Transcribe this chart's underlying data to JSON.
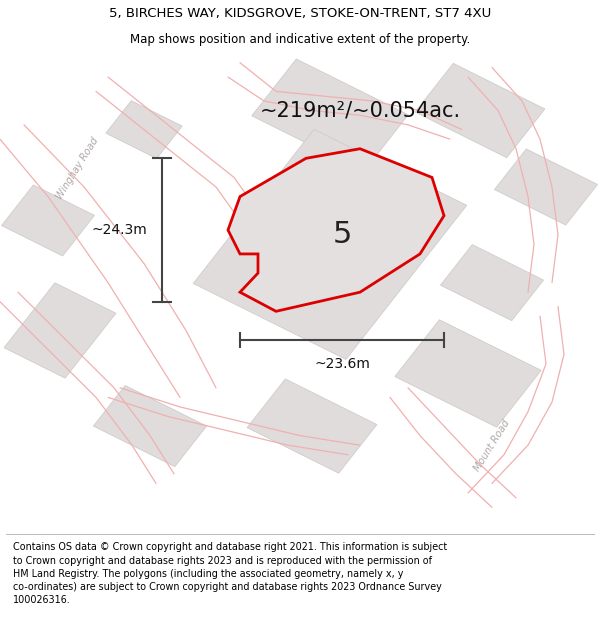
{
  "title_line1": "5, BIRCHES WAY, KIDSGROVE, STOKE-ON-TRENT, ST7 4XU",
  "title_line2": "Map shows position and indicative extent of the property.",
  "footer_text": "Contains OS data © Crown copyright and database right 2021. This information is subject to Crown copyright and database rights 2023 and is reproduced with the permission of HM Land Registry. The polygons (including the associated geometry, namely x, y co-ordinates) are subject to Crown copyright and database rights 2023 Ordnance Survey 100026316.",
  "area_label": "~219m²/~0.054ac.",
  "width_label": "~23.6m",
  "height_label": "~24.3m",
  "property_number": "5",
  "map_bg": "#f5f2f2",
  "block_color": "#e0dcdc",
  "block_edge": "#d0cccc",
  "plot_fill": "#e4e0e0",
  "plot_border": "#dd0000",
  "road_line_color": "#f0b0b0",
  "dim_line_color": "#444444",
  "road_label_color": "#b0a8a8",
  "title_fontsize": 9.5,
  "subtitle_fontsize": 8.5,
  "footer_fontsize": 6.9,
  "area_fontsize": 15,
  "dim_fontsize": 10,
  "prop_num_fontsize": 22
}
